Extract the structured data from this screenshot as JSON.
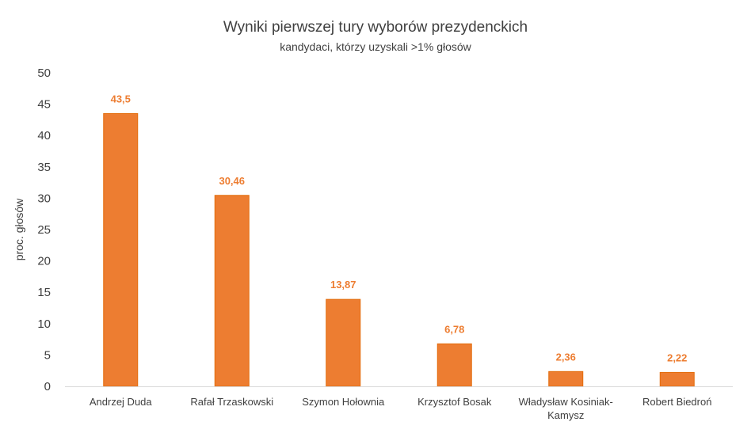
{
  "chart_data": {
    "type": "bar",
    "title": "Wyniki pierwszej tury wyborów prezydenckich",
    "subtitle": "kandydaci, którzy uzyskali >1% głosów",
    "ylabel": "proc. głosów",
    "xlabel": "",
    "categories": [
      [
        "Andrzej Duda"
      ],
      [
        "Rafał Trzaskowski"
      ],
      [
        "Szymon Hołownia"
      ],
      [
        "Krzysztof Bosak"
      ],
      [
        "Władysław Kosiniak-",
        "Kamysz"
      ],
      [
        "Robert Biedroń"
      ]
    ],
    "values": [
      43.5,
      30.46,
      13.87,
      6.78,
      2.36,
      2.22
    ],
    "value_labels": [
      "43,5",
      "30,46",
      "13,87",
      "6,78",
      "2,36",
      "2,22"
    ],
    "ylim": [
      0,
      50
    ],
    "yticks": [
      0,
      5,
      10,
      15,
      20,
      25,
      30,
      35,
      40,
      45,
      50
    ],
    "grid": false,
    "legend": "none",
    "colors": {
      "bar": "#ED7D31",
      "bar_border": "#E36C0A",
      "data_label": "#ED7D31",
      "axis": "#D9D9D9"
    }
  }
}
